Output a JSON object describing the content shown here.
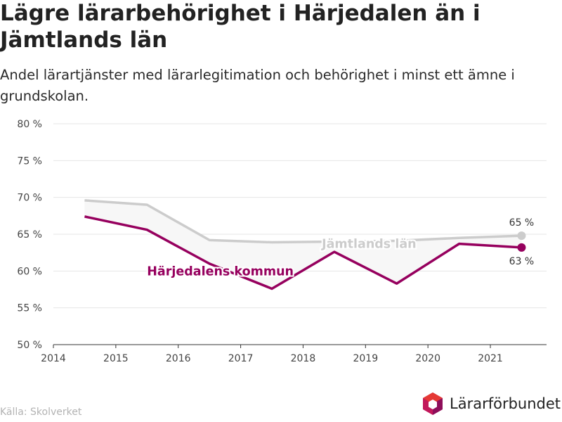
{
  "title": "Lägre lärarbehörighet i Härjedalen än i Jämtlands län",
  "subtitle": "Andel lärartjänster med lärarlegitimation och behörighet i minst ett ämne i grundskolan.",
  "source": "Källa: Skolverket",
  "logo": {
    "text": "Lärarförbundet",
    "icon": "cube-logo-icon",
    "colors": [
      "#c2185b",
      "#8e0e5a",
      "#e53935"
    ]
  },
  "colors": {
    "harjedalen": "#96005e",
    "jamtland": "#cccccc",
    "band": "#f7f7f7",
    "grid": "#e6e6e6",
    "axis": "#333333",
    "tick_label": "#444444"
  },
  "chart_data": {
    "type": "line",
    "title": "",
    "xlabel": "",
    "ylabel": "",
    "xlim": [
      2014,
      2021.9
    ],
    "ylim": [
      50,
      80
    ],
    "x_ticks": [
      2014,
      2015,
      2016,
      2017,
      2018,
      2019,
      2020,
      2021
    ],
    "y_ticks": [
      50,
      55,
      60,
      65,
      70,
      75,
      80
    ],
    "y_tick_suffix": " %",
    "grid": true,
    "shaded_gap_between_series": true,
    "x": [
      2014.5,
      2015.5,
      2016.5,
      2017.5,
      2018.5,
      2019.5,
      2020.5,
      2021.5
    ],
    "series": [
      {
        "name": "Jämtlands län",
        "values": [
          69.6,
          69.0,
          64.2,
          63.9,
          64.0,
          64.1,
          64.5,
          64.8
        ],
        "end_label": "65 %"
      },
      {
        "name": "Härjedalens kommun",
        "values": [
          67.4,
          65.6,
          61.0,
          57.6,
          62.6,
          58.3,
          63.7,
          63.2
        ],
        "end_label": "63 %"
      }
    ]
  }
}
